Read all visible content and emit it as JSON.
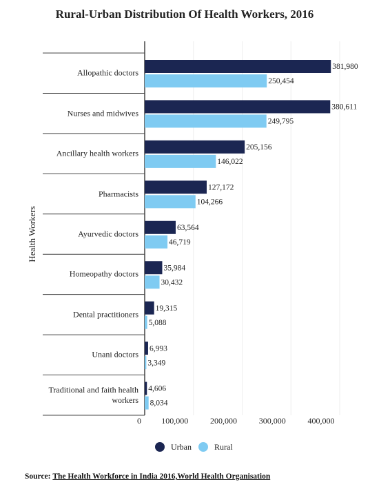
{
  "chart_data": {
    "type": "bar",
    "orientation": "horizontal",
    "title": "Rural-Urban Distribution Of Health Workers, 2016",
    "y_label": "Health Workers",
    "categories": [
      "Allopathic doctors",
      "Nurses and midwives",
      "Ancillary health workers",
      "Pharmacists",
      "Ayurvedic doctors",
      "Homeopathy doctors",
      "Dental practitioners",
      "Unani doctors",
      "Traditional and faith health workers"
    ],
    "series": [
      {
        "name": "Urban",
        "color": "#1b2652",
        "values": [
          381980,
          380611,
          205156,
          127172,
          63564,
          35984,
          19315,
          6993,
          4606
        ],
        "value_labels": [
          "381,980",
          "380,611",
          "205,156",
          "127,172",
          "63,564",
          "35,984",
          "19,315",
          "6,993",
          "4,606"
        ]
      },
      {
        "name": "Rural",
        "color": "#7fcbf2",
        "values": [
          250454,
          249795,
          146022,
          104266,
          46719,
          30432,
          5088,
          3349,
          8034
        ],
        "value_labels": [
          "250,454",
          "249,795",
          "146,022",
          "104,266",
          "46,719",
          "30,432",
          "5,088",
          "3,349",
          "8,034"
        ]
      }
    ],
    "xlim": [
      0,
      400000
    ],
    "xticks": [
      0,
      {
        "value": 100000,
        "label": "100,000"
      },
      {
        "value": 200000,
        "label": "200,000"
      },
      {
        "value": 300000,
        "label": "300,000"
      },
      {
        "value": 400000,
        "label": "400,000"
      }
    ],
    "grid": true,
    "source": {
      "label": "Source:",
      "text": "The Health Workforce in India 2016,World Health Organisation"
    }
  }
}
